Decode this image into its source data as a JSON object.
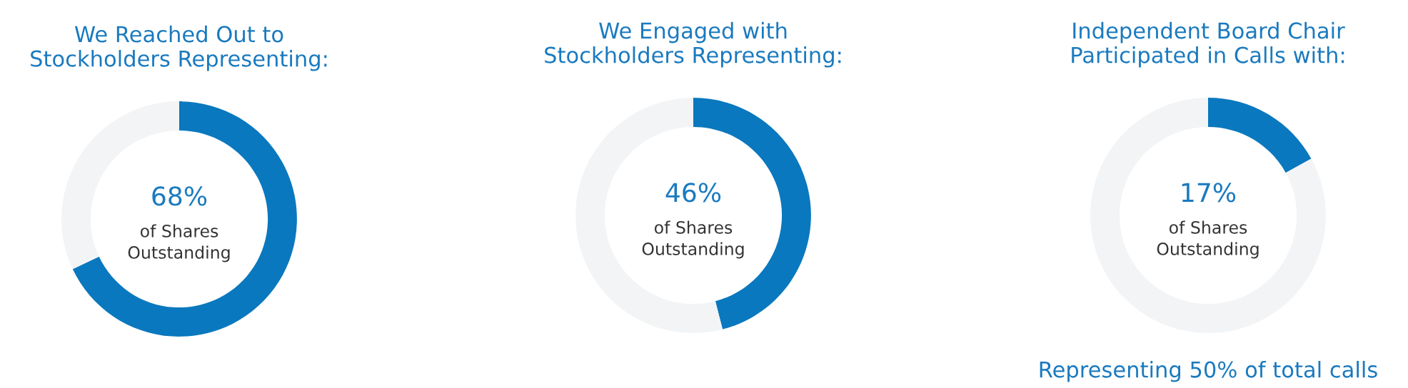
{
  "chart_data": [
    {
      "type": "donut",
      "title": "We Reached Out to\nStockholders Representing:",
      "categories": [
        null,
        null
      ],
      "values": [
        68,
        32
      ],
      "colors": [
        "#0a78be",
        "#f3f4f6"
      ],
      "value_labels": [
        "68%",
        null
      ],
      "annotations": [
        "of Shares\nOutstanding"
      ]
    },
    {
      "type": "donut",
      "title": "We Engaged with\nStockholders Representing:",
      "categories": [
        null,
        null
      ],
      "values": [
        46,
        54
      ],
      "colors": [
        "#0a78be",
        "#f3f4f6"
      ],
      "value_labels": [
        "46%",
        null
      ],
      "annotations": [
        "of Shares\nOutstanding"
      ]
    },
    {
      "type": "donut",
      "title": "Independent Board Chair\nParticipated in Calls with:",
      "categories": [
        null,
        null
      ],
      "values": [
        17,
        83
      ],
      "colors": [
        "#0a78be",
        "#f3f4f6"
      ],
      "value_labels": [
        "17%",
        null
      ],
      "annotations": [
        "of Shares\nOutstanding",
        "Representing 50% of total calls"
      ]
    }
  ]
}
